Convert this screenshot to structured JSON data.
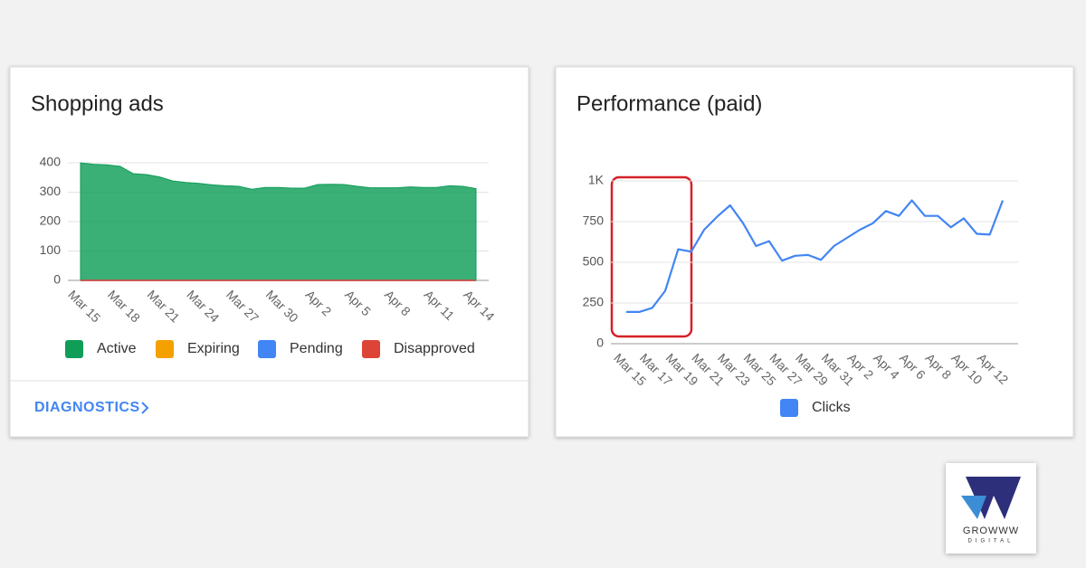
{
  "chart_data": [
    {
      "type": "area",
      "title": "Shopping ads",
      "categories": [
        "Mar 15",
        null,
        null,
        "Mar 18",
        null,
        null,
        "Mar 21",
        null,
        null,
        "Mar 24",
        null,
        null,
        "Mar 27",
        null,
        null,
        "Mar 30",
        null,
        null,
        "Apr 2",
        null,
        null,
        "Apr 5",
        null,
        null,
        "Apr 8",
        null,
        null,
        "Apr 11",
        null,
        null,
        "Apr 14"
      ],
      "series": [
        {
          "name": "Active",
          "color": "#0f9d58",
          "values": [
            400,
            395,
            393,
            388,
            363,
            360,
            352,
            338,
            333,
            330,
            325,
            322,
            320,
            310,
            316,
            316,
            314,
            314,
            326,
            327,
            326,
            320,
            315,
            315,
            315,
            318,
            316,
            316,
            322,
            320,
            312
          ]
        },
        {
          "name": "Expiring",
          "color": "#f4a100",
          "values": [
            0,
            0,
            0,
            0,
            0,
            0,
            0,
            0,
            0,
            0,
            0,
            0,
            0,
            0,
            0,
            0,
            0,
            0,
            0,
            0,
            0,
            0,
            0,
            0,
            0,
            0,
            0,
            0,
            0,
            0,
            0
          ]
        },
        {
          "name": "Pending",
          "color": "#4285f4",
          "values": [
            0,
            0,
            0,
            0,
            0,
            0,
            0,
            0,
            0,
            0,
            0,
            0,
            0,
            0,
            0,
            0,
            0,
            0,
            0,
            0,
            0,
            0,
            0,
            0,
            0,
            0,
            0,
            0,
            0,
            0,
            0
          ]
        },
        {
          "name": "Disapproved",
          "color": "#db4437",
          "values": [
            0,
            0,
            0,
            0,
            0,
            0,
            0,
            0,
            0,
            0,
            0,
            0,
            0,
            0,
            0,
            0,
            0,
            0,
            0,
            0,
            0,
            0,
            0,
            0,
            0,
            0,
            0,
            0,
            0,
            0,
            0
          ]
        }
      ],
      "ylim": [
        0,
        400
      ],
      "yticks": [
        0,
        100,
        200,
        300,
        400
      ],
      "grid": true
    },
    {
      "type": "line",
      "title": "Performance (paid)",
      "categories": [
        "Mar 15",
        null,
        "Mar 17",
        null,
        "Mar 19",
        null,
        "Mar 21",
        null,
        "Mar 23",
        null,
        "Mar 25",
        null,
        "Mar 27",
        null,
        "Mar 29",
        null,
        "Mar 31",
        null,
        "Apr 2",
        null,
        "Apr 4",
        null,
        "Apr 6",
        null,
        "Apr 8",
        null,
        "Apr 10",
        null,
        "Apr 12",
        null
      ],
      "series": [
        {
          "name": "Clicks",
          "color": "#4285f4",
          "values": [
            195,
            195,
            220,
            325,
            580,
            565,
            700,
            780,
            850,
            740,
            600,
            630,
            510,
            540,
            545,
            515,
            600,
            650,
            700,
            740,
            815,
            785,
            880,
            785,
            785,
            715,
            770,
            675,
            670,
            880
          ]
        }
      ],
      "ylim": [
        0,
        1000
      ],
      "yticks": [
        0,
        250,
        500,
        750,
        {
          "value": 1000,
          "label": "1K"
        }
      ],
      "grid": true
    }
  ],
  "link": "DIAGNOSTICS",
  "logo": {
    "name": "GROWWW",
    "subtitle": "DIGITAL"
  }
}
